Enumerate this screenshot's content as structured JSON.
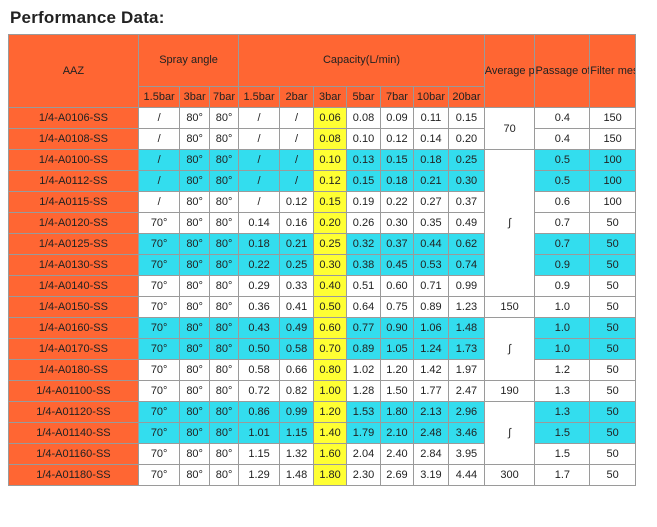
{
  "title": "Performance Data:",
  "headers": {
    "model": "AAZ",
    "spray_angle": "Spray angle",
    "capacity": "Capacity(L/min)",
    "particle": "Average particle size (um)",
    "passage": "Passage of foreign body (mm)",
    "mesh": "Filter mesh",
    "sa_sub": [
      "1.5bar",
      "3bar",
      "7bar"
    ],
    "cap_sub": [
      "1.5bar",
      "2bar",
      "3bar",
      "5bar",
      "7bar",
      "10bar",
      "20bar"
    ]
  },
  "colors": {
    "header_orange": "#ff6633",
    "cyan": "#33ddee",
    "yellow": "#ffff33",
    "white": "#ffffff",
    "border": "#9a9a9a"
  },
  "particle_groups": [
    {
      "rows": 2,
      "text": "70"
    },
    {
      "rows": 7,
      "text": "∫"
    },
    {
      "rows": 1,
      "text": "150"
    },
    {
      "rows": 3,
      "text": "∫"
    },
    {
      "rows": 1,
      "text": "190"
    },
    {
      "rows": 3,
      "text": "∫"
    },
    {
      "rows": 1,
      "text": "300"
    }
  ],
  "rows": [
    {
      "model": "1/4-A0106-SS",
      "tint": "w",
      "sa": [
        "/",
        "80°",
        "80°"
      ],
      "cap": [
        "/",
        "/",
        "0.06",
        "0.08",
        "0.09",
        "0.11",
        "0.15"
      ],
      "passage": "0.4",
      "mesh": "150"
    },
    {
      "model": "1/4-A0108-SS",
      "tint": "w",
      "sa": [
        "/",
        "80°",
        "80°"
      ],
      "cap": [
        "/",
        "/",
        "0.08",
        "0.10",
        "0.12",
        "0.14",
        "0.20"
      ],
      "passage": "0.4",
      "mesh": "150"
    },
    {
      "model": "1/4-A0100-SS",
      "tint": "c",
      "sa": [
        "/",
        "80°",
        "80°"
      ],
      "cap": [
        "/",
        "/",
        "0.10",
        "0.13",
        "0.15",
        "0.18",
        "0.25"
      ],
      "passage": "0.5",
      "mesh": "100"
    },
    {
      "model": "1/4-A0112-SS",
      "tint": "c",
      "sa": [
        "/",
        "80°",
        "80°"
      ],
      "cap": [
        "/",
        "/",
        "0.12",
        "0.15",
        "0.18",
        "0.21",
        "0.30"
      ],
      "passage": "0.5",
      "mesh": "100"
    },
    {
      "model": "1/4-A0115-SS",
      "tint": "w",
      "sa": [
        "/",
        "80°",
        "80°"
      ],
      "cap": [
        "/",
        "0.12",
        "0.15",
        "0.19",
        "0.22",
        "0.27",
        "0.37"
      ],
      "passage": "0.6",
      "mesh": "100"
    },
    {
      "model": "1/4-A0120-SS",
      "tint": "w",
      "sa": [
        "70°",
        "80°",
        "80°"
      ],
      "cap": [
        "0.14",
        "0.16",
        "0.20",
        "0.26",
        "0.30",
        "0.35",
        "0.49"
      ],
      "passage": "0.7",
      "mesh": "50"
    },
    {
      "model": "1/4-A0125-SS",
      "tint": "c",
      "sa": [
        "70°",
        "80°",
        "80°"
      ],
      "cap": [
        "0.18",
        "0.21",
        "0.25",
        "0.32",
        "0.37",
        "0.44",
        "0.62"
      ],
      "passage": "0.7",
      "mesh": "50"
    },
    {
      "model": "1/4-A0130-SS",
      "tint": "c",
      "sa": [
        "70°",
        "80°",
        "80°"
      ],
      "cap": [
        "0.22",
        "0.25",
        "0.30",
        "0.38",
        "0.45",
        "0.53",
        "0.74"
      ],
      "passage": "0.9",
      "mesh": "50"
    },
    {
      "model": "1/4-A0140-SS",
      "tint": "w",
      "sa": [
        "70°",
        "80°",
        "80°"
      ],
      "cap": [
        "0.29",
        "0.33",
        "0.40",
        "0.51",
        "0.60",
        "0.71",
        "0.99"
      ],
      "passage": "0.9",
      "mesh": "50"
    },
    {
      "model": "1/4-A0150-SS",
      "tint": "w",
      "sa": [
        "70°",
        "80°",
        "80°"
      ],
      "cap": [
        "0.36",
        "0.41",
        "0.50",
        "0.64",
        "0.75",
        "0.89",
        "1.23"
      ],
      "passage": "1.0",
      "mesh": "50"
    },
    {
      "model": "1/4-A0160-SS",
      "tint": "c",
      "sa": [
        "70°",
        "80°",
        "80°"
      ],
      "cap": [
        "0.43",
        "0.49",
        "0.60",
        "0.77",
        "0.90",
        "1.06",
        "1.48"
      ],
      "passage": "1.0",
      "mesh": "50"
    },
    {
      "model": "1/4-A0170-SS",
      "tint": "c",
      "sa": [
        "70°",
        "80°",
        "80°"
      ],
      "cap": [
        "0.50",
        "0.58",
        "0.70",
        "0.89",
        "1.05",
        "1.24",
        "1.73"
      ],
      "passage": "1.0",
      "mesh": "50"
    },
    {
      "model": "1/4-A0180-SS",
      "tint": "w",
      "sa": [
        "70°",
        "80°",
        "80°"
      ],
      "cap": [
        "0.58",
        "0.66",
        "0.80",
        "1.02",
        "1.20",
        "1.42",
        "1.97"
      ],
      "passage": "1.2",
      "mesh": "50"
    },
    {
      "model": "1/4-A01100-SS",
      "tint": "w",
      "sa": [
        "70°",
        "80°",
        "80°"
      ],
      "cap": [
        "0.72",
        "0.82",
        "1.00",
        "1.28",
        "1.50",
        "1.77",
        "2.47"
      ],
      "passage": "1.3",
      "mesh": "50"
    },
    {
      "model": "1/4-A01120-SS",
      "tint": "c",
      "sa": [
        "70°",
        "80°",
        "80°"
      ],
      "cap": [
        "0.86",
        "0.99",
        "1.20",
        "1.53",
        "1.80",
        "2.13",
        "2.96"
      ],
      "passage": "1.3",
      "mesh": "50"
    },
    {
      "model": "1/4-A01140-SS",
      "tint": "c",
      "sa": [
        "70°",
        "80°",
        "80°"
      ],
      "cap": [
        "1.01",
        "1.15",
        "1.40",
        "1.79",
        "2.10",
        "2.48",
        "3.46"
      ],
      "passage": "1.5",
      "mesh": "50"
    },
    {
      "model": "1/4-A01160-SS",
      "tint": "w",
      "sa": [
        "70°",
        "80°",
        "80°"
      ],
      "cap": [
        "1.15",
        "1.32",
        "1.60",
        "2.04",
        "2.40",
        "2.84",
        "3.95"
      ],
      "passage": "1.5",
      "mesh": "50"
    },
    {
      "model": "1/4-A01180-SS",
      "tint": "w",
      "sa": [
        "70°",
        "80°",
        "80°"
      ],
      "cap": [
        "1.29",
        "1.48",
        "1.80",
        "2.30",
        "2.69",
        "3.19",
        "4.44"
      ],
      "passage": "1.7",
      "mesh": "50"
    }
  ]
}
